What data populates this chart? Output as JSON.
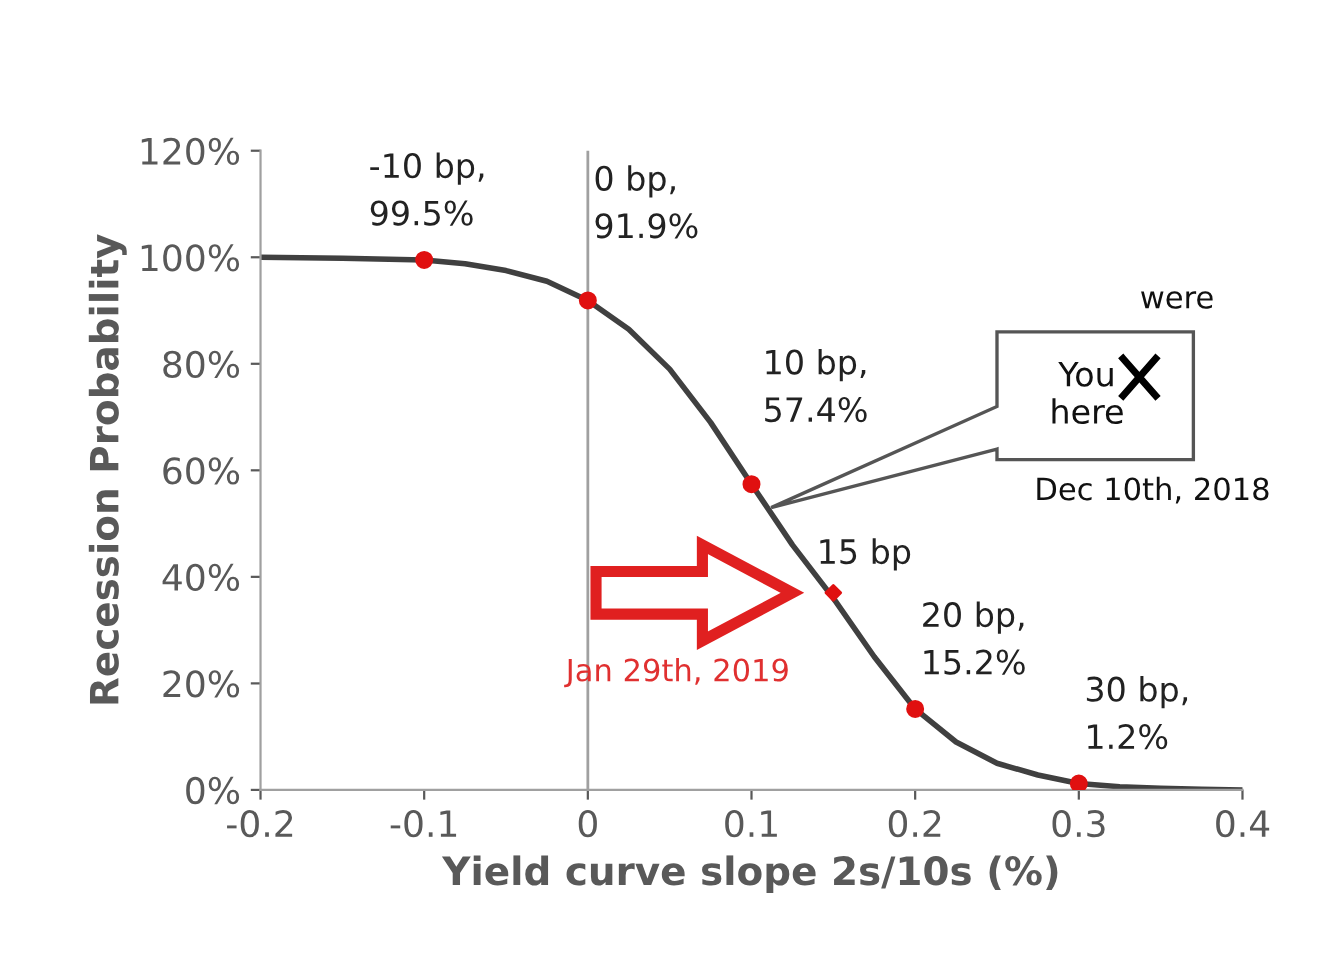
{
  "chart_data": {
    "type": "line",
    "xlabel": "Yield curve slope 2s/10s (%)",
    "ylabel": "Recession Probability",
    "xlim": [
      -0.2,
      0.4
    ],
    "xticks": [
      -0.2,
      -0.1,
      0,
      0.1,
      0.2,
      0.3,
      0.4
    ],
    "ylim": [
      0,
      120
    ],
    "yticks": [
      {
        "value": 0,
        "label": "0%"
      },
      {
        "value": 20,
        "label": "20%"
      },
      {
        "value": 40,
        "label": "40%"
      },
      {
        "value": 60,
        "label": "60%"
      },
      {
        "value": 80,
        "label": "80%"
      },
      {
        "value": 100,
        "label": "100%"
      },
      {
        "value": 120,
        "label": "120%"
      }
    ],
    "grid": false,
    "legend": false,
    "series": [
      {
        "color": "#404040",
        "marker": "none",
        "line_style": "solid",
        "x": [
          -0.2,
          -0.15,
          -0.1,
          -0.075,
          -0.05,
          -0.025,
          0,
          0.025,
          0.05,
          0.075,
          0.1,
          0.125,
          0.15,
          0.175,
          0.2,
          0.225,
          0.25,
          0.275,
          0.3,
          0.325,
          0.35,
          0.375,
          0.4
        ],
        "values": [
          100,
          99.8,
          99.5,
          98.8,
          97.5,
          95.5,
          91.9,
          86.5,
          79,
          69,
          57.4,
          46,
          36,
          25,
          15.2,
          9,
          5,
          2.8,
          1.2,
          0.6,
          0.3,
          0.1,
          0
        ]
      },
      {
        "type": "scatter",
        "color": "#e01010",
        "marker": "circle",
        "x": [
          -0.1,
          0,
          0.1,
          0.2,
          0.3
        ],
        "values": [
          99.5,
          91.9,
          57.4,
          15.2,
          1.2
        ]
      },
      {
        "type": "scatter",
        "color": "#e01010",
        "marker": "diamond",
        "x": [
          0.15
        ],
        "values": [
          37
        ]
      }
    ],
    "ref_lines": [
      {
        "axis": "x",
        "value": 0,
        "color": "#a0a0a0"
      }
    ],
    "annotations": [
      {
        "text": "-10 bp,\n99.5%",
        "x": -0.1,
        "y": 99.5
      },
      {
        "text": "0 bp,\n91.9%",
        "x": 0,
        "y": 91.9
      },
      {
        "text": "10 bp,\n57.4%",
        "x": 0.1,
        "y": 57.4
      },
      {
        "text": "15 bp",
        "x": 0.15,
        "y": 37
      },
      {
        "text": "20 bp,\n15.2%",
        "x": 0.2,
        "y": 15.2
      },
      {
        "text": "30 bp,\n1.2%",
        "x": 0.3,
        "y": 1.2
      },
      "You\nhere",
      "were",
      "Dec 10th, 2018",
      "Jan 29th, 2019"
    ]
  }
}
